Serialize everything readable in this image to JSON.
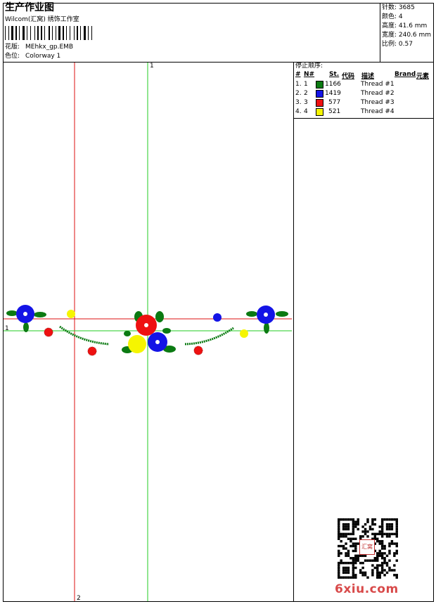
{
  "header": {
    "title": "生产作业图",
    "studio": "Wilcom(汇窝) 绣饰工作室",
    "design_label": "花版:",
    "design_name": "MEhkx_gp.EMB",
    "colorway_label": "色位:",
    "colorway_name": "Colorway 1"
  },
  "stats": {
    "stitches": "针数: 3685",
    "colors": "颜色: 4",
    "height": "高度: 41.6 mm",
    "width": "宽度: 240.6 mm",
    "scale": "比例: 0.57"
  },
  "stop_sequence": {
    "title": "停止顺序:",
    "headers": [
      "#",
      "N#",
      "St.",
      "代码",
      "描述",
      "Brand",
      "元素"
    ],
    "rows": [
      {
        "index": "1.",
        "needle": "1",
        "color": "#0b7a12",
        "code": "1166",
        "desc": "Thread #1"
      },
      {
        "index": "2.",
        "needle": "2",
        "color": "#1414e6",
        "code": "1419",
        "desc": "Thread #2"
      },
      {
        "index": "3.",
        "needle": "3",
        "color": "#ee1111",
        "code": "577",
        "desc": "Thread #3"
      },
      {
        "index": "4.",
        "needle": "4",
        "color": "#f5f500",
        "code": "521",
        "desc": "Thread #4"
      }
    ]
  },
  "canvas": {
    "axis_top": "1",
    "axis_left": "1",
    "axis_bottom": "2",
    "guide_colors": {
      "green": "#22cc22",
      "red": "#dd1111"
    }
  },
  "watermark": {
    "text": "6xiu.com",
    "seal_text": "汇窝"
  }
}
